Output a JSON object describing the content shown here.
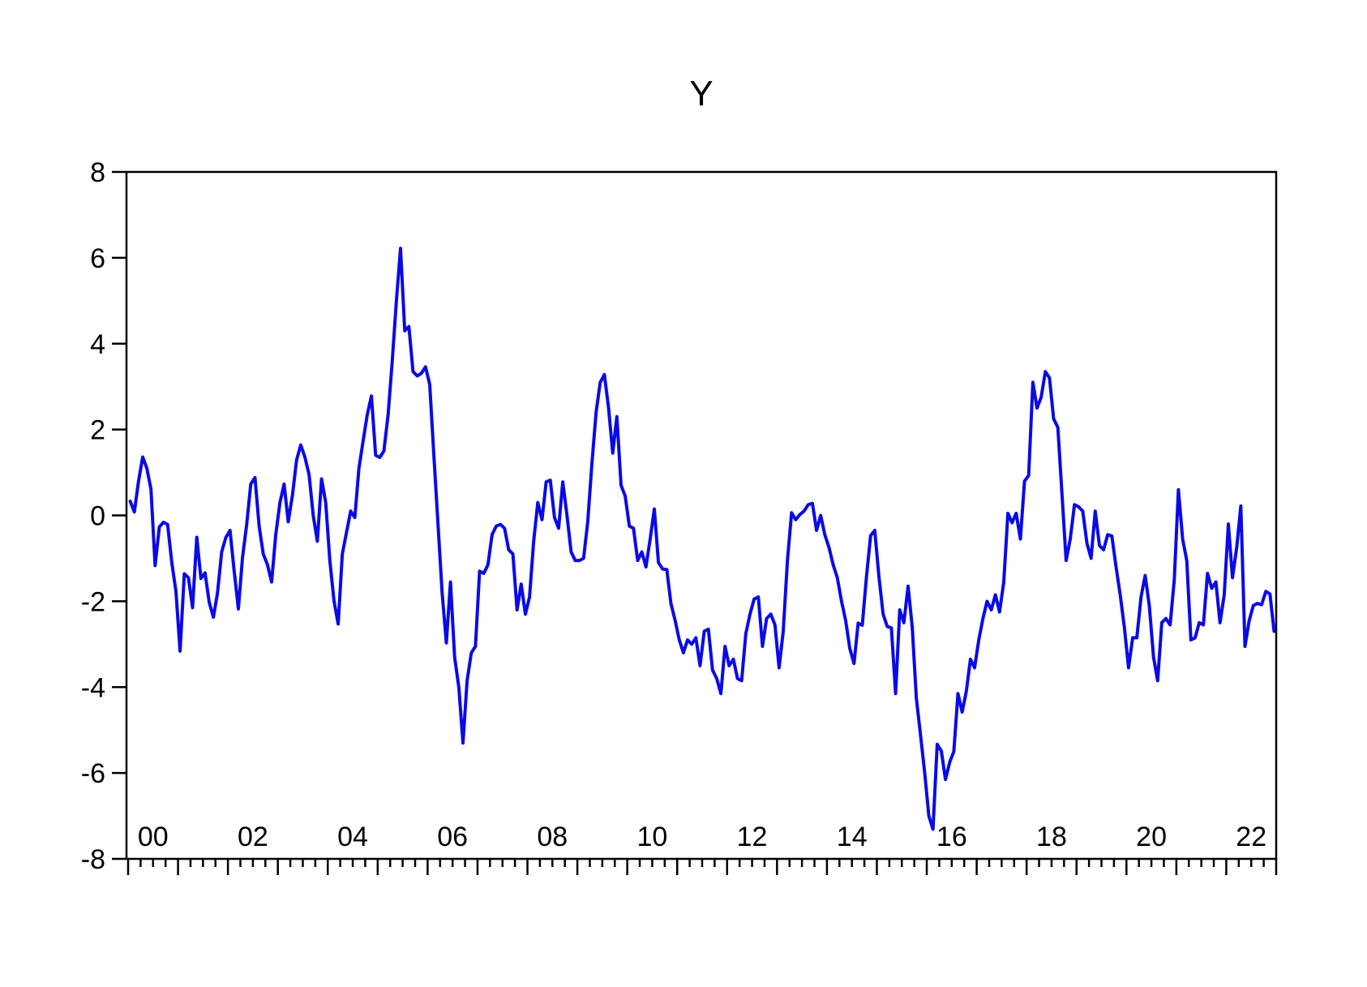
{
  "page": {
    "background": "#ffffff"
  },
  "chart_data": {
    "type": "line",
    "title": "Y",
    "grid": "off",
    "legend_position": "none",
    "frame": "box",
    "axis_color": "#000000",
    "y_axis": {
      "min": -8,
      "max": 8,
      "tick_step": 2,
      "tick_labels": [
        "8",
        "6",
        "4",
        "2",
        "0",
        "-2",
        "-4",
        "-6",
        "-8"
      ]
    },
    "x_axis": {
      "start_year": 2000,
      "end_year": 2023,
      "frequency": "monthly",
      "minor_tick_interval_years": 0.25,
      "major_tick_interval_years": 1,
      "label_interval_years": 2,
      "tick_labels": [
        "00",
        "02",
        "04",
        "06",
        "08",
        "10",
        "12",
        "14",
        "16",
        "18",
        "20",
        "22"
      ]
    },
    "series": [
      {
        "name": "Y",
        "color": "#0a0ae8",
        "values": [
          0.33,
          0.08,
          0.79,
          1.36,
          1.1,
          0.61,
          -1.17,
          -0.27,
          -0.16,
          -0.21,
          -1.1,
          -1.77,
          -3.16,
          -1.36,
          -1.45,
          -2.15,
          -0.51,
          -1.47,
          -1.34,
          -2.02,
          -2.37,
          -1.8,
          -0.85,
          -0.51,
          -0.35,
          -1.29,
          -2.18,
          -0.98,
          -0.22,
          0.73,
          0.88,
          -0.25,
          -0.9,
          -1.15,
          -1.55,
          -0.45,
          0.3,
          0.73,
          -0.15,
          0.47,
          1.29,
          1.64,
          1.36,
          0.95,
          0.0,
          -0.6,
          0.85,
          0.3,
          -1.05,
          -2.0,
          -2.53,
          -0.9,
          -0.4,
          0.1,
          -0.05,
          1.1,
          1.74,
          2.35,
          2.78,
          1.4,
          1.35,
          1.5,
          2.35,
          3.6,
          5.0,
          6.22,
          4.3,
          4.4,
          3.35,
          3.25,
          3.31,
          3.46,
          3.05,
          1.4,
          -0.2,
          -1.8,
          -2.97,
          -1.55,
          -3.3,
          -4.0,
          -5.3,
          -3.85,
          -3.2,
          -3.05,
          -1.3,
          -1.35,
          -1.15,
          -0.45,
          -0.25,
          -0.21,
          -0.3,
          -0.8,
          -0.9,
          -2.2,
          -1.6,
          -2.3,
          -1.9,
          -0.6,
          0.3,
          -0.1,
          0.78,
          0.82,
          -0.05,
          -0.3,
          0.78,
          0.0,
          -0.85,
          -1.05,
          -1.05,
          -1.0,
          -0.15,
          1.2,
          2.4,
          3.1,
          3.28,
          2.5,
          1.45,
          2.3,
          0.7,
          0.45,
          -0.25,
          -0.3,
          -1.05,
          -0.85,
          -1.2,
          -0.55,
          0.15,
          -1.1,
          -1.25,
          -1.26,
          -2.05,
          -2.45,
          -2.9,
          -3.2,
          -2.9,
          -3.0,
          -2.85,
          -3.5,
          -2.7,
          -2.65,
          -3.6,
          -3.8,
          -4.15,
          -3.05,
          -3.5,
          -3.35,
          -3.8,
          -3.85,
          -2.75,
          -2.3,
          -1.95,
          -1.9,
          -3.05,
          -2.4,
          -2.3,
          -2.55,
          -3.55,
          -2.7,
          -1.05,
          0.06,
          -0.1,
          0.02,
          0.1,
          0.25,
          0.28,
          -0.35,
          0.0,
          -0.45,
          -0.75,
          -1.15,
          -1.45,
          -2.0,
          -2.45,
          -3.1,
          -3.45,
          -2.51,
          -2.56,
          -1.42,
          -0.47,
          -0.35,
          -1.42,
          -2.3,
          -2.59,
          -2.62,
          -4.15,
          -2.2,
          -2.5,
          -1.65,
          -2.6,
          -4.26,
          -5.11,
          -6.0,
          -7.0,
          -7.31,
          -5.33,
          -5.49,
          -6.15,
          -5.75,
          -5.5,
          -4.15,
          -4.58,
          -4.1,
          -3.35,
          -3.55,
          -2.9,
          -2.4,
          -2.0,
          -2.2,
          -1.85,
          -2.25,
          -1.55,
          0.05,
          -0.17,
          0.05,
          -0.55,
          0.8,
          0.93,
          3.1,
          2.5,
          2.75,
          3.35,
          3.2,
          2.25,
          2.05,
          0.5,
          -1.05,
          -0.55,
          0.25,
          0.2,
          0.1,
          -0.65,
          -1.0,
          0.1,
          -0.7,
          -0.8,
          -0.45,
          -0.48,
          -1.2,
          -1.85,
          -2.6,
          -3.55,
          -2.85,
          -2.85,
          -1.9,
          -1.4,
          -2.1,
          -3.3,
          -3.85,
          -2.5,
          -2.4,
          -2.55,
          -1.5,
          0.6,
          -0.55,
          -1.05,
          -2.9,
          -2.85,
          -2.5,
          -2.55,
          -1.35,
          -1.7,
          -1.55,
          -2.5,
          -1.85,
          -0.2,
          -1.45,
          -0.75,
          0.22,
          -3.05,
          -2.45,
          -2.1,
          -2.05,
          -2.08,
          -1.77,
          -1.83,
          -2.7
        ]
      }
    ]
  }
}
